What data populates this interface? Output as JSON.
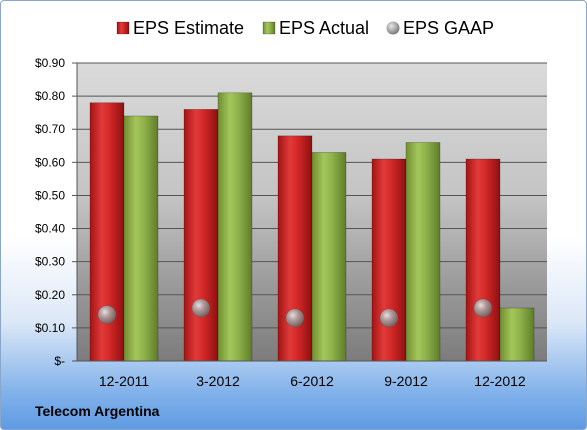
{
  "company": "Telecom Argentina",
  "chart_data": {
    "type": "bar",
    "categories": [
      "12-2011",
      "3-2012",
      "6-2012",
      "9-2012",
      "12-2012"
    ],
    "series": [
      {
        "name": "EPS Estimate",
        "values": [
          0.78,
          0.76,
          0.68,
          0.61,
          0.61
        ],
        "color": "#d42a2a",
        "marker": "bar"
      },
      {
        "name": "EPS Actual",
        "values": [
          0.74,
          0.81,
          0.63,
          0.66,
          0.16
        ],
        "color": "#8db048",
        "marker": "bar"
      },
      {
        "name": "EPS GAAP",
        "values": [
          0.14,
          0.16,
          0.13,
          0.13,
          0.16
        ],
        "color": "#a7a7a7",
        "marker": "sphere"
      }
    ],
    "ylim": [
      0,
      0.9
    ],
    "yticks": [
      0,
      0.1,
      0.2,
      0.3,
      0.4,
      0.5,
      0.6,
      0.7,
      0.8,
      0.9
    ],
    "ytick_labels": [
      "$-",
      "$0.10",
      "$0.20",
      "$0.30",
      "$0.40",
      "$0.50",
      "$0.60",
      "$0.70",
      "$0.80",
      "$0.90"
    ],
    "grid": true,
    "legend": "top"
  }
}
